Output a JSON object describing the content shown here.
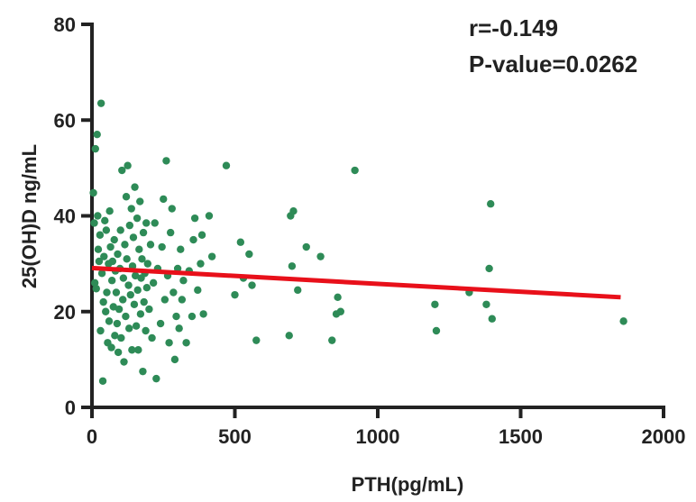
{
  "chart_data": {
    "type": "scatter",
    "title": "",
    "xlabel": "PTH(pg/mL)",
    "ylabel": "25(OH)D ng/mL",
    "xlim": [
      0,
      2000
    ],
    "ylim": [
      0,
      80
    ],
    "xticks": [
      0,
      500,
      1000,
      1500,
      2000
    ],
    "yticks": [
      0,
      20,
      40,
      60,
      80
    ],
    "grid": false,
    "annotations": [
      "r=-0.149",
      "P-value=0.0262"
    ],
    "colors": {
      "points": "#2e8b57",
      "regression": "#e8101a",
      "axis": "#222222"
    },
    "regression_line": {
      "x": [
        0,
        1850
      ],
      "y": [
        29.1,
        23.0
      ]
    },
    "points": [
      [
        5,
        44.8
      ],
      [
        8,
        38.5
      ],
      [
        10,
        26.0
      ],
      [
        12,
        54.0
      ],
      [
        15,
        24.8
      ],
      [
        18,
        57.0
      ],
      [
        20,
        40.0
      ],
      [
        22,
        33.0
      ],
      [
        25,
        30.5
      ],
      [
        28,
        36.0
      ],
      [
        30,
        16.0
      ],
      [
        32,
        63.5
      ],
      [
        35,
        28.0
      ],
      [
        38,
        5.5
      ],
      [
        40,
        22.0
      ],
      [
        42,
        31.5
      ],
      [
        45,
        39.0
      ],
      [
        48,
        20.0
      ],
      [
        50,
        37.0
      ],
      [
        52,
        24.0
      ],
      [
        55,
        13.5
      ],
      [
        58,
        30.0
      ],
      [
        60,
        18.0
      ],
      [
        62,
        41.0
      ],
      [
        65,
        33.5
      ],
      [
        68,
        12.5
      ],
      [
        70,
        26.5
      ],
      [
        72,
        30.5
      ],
      [
        75,
        21.0
      ],
      [
        78,
        35.0
      ],
      [
        80,
        15.0
      ],
      [
        82,
        28.5
      ],
      [
        85,
        24.0
      ],
      [
        88,
        17.5
      ],
      [
        90,
        32.0
      ],
      [
        92,
        11.5
      ],
      [
        95,
        20.5
      ],
      [
        98,
        29.0
      ],
      [
        100,
        37.0
      ],
      [
        102,
        14.5
      ],
      [
        105,
        49.5
      ],
      [
        108,
        22.5
      ],
      [
        110,
        27.0
      ],
      [
        112,
        9.5
      ],
      [
        115,
        34.0
      ],
      [
        118,
        19.0
      ],
      [
        120,
        44.0
      ],
      [
        122,
        31.0
      ],
      [
        125,
        50.5
      ],
      [
        128,
        25.5
      ],
      [
        130,
        16.5
      ],
      [
        132,
        38.0
      ],
      [
        135,
        23.5
      ],
      [
        138,
        41.5
      ],
      [
        140,
        12.0
      ],
      [
        142,
        29.5
      ],
      [
        145,
        35.5
      ],
      [
        148,
        21.5
      ],
      [
        150,
        46.0
      ],
      [
        152,
        27.5
      ],
      [
        155,
        17.0
      ],
      [
        158,
        39.5
      ],
      [
        160,
        24.5
      ],
      [
        162,
        12.0
      ],
      [
        165,
        33.0
      ],
      [
        168,
        43.0
      ],
      [
        170,
        19.5
      ],
      [
        172,
        27.0
      ],
      [
        175,
        31.0
      ],
      [
        178,
        7.5
      ],
      [
        180,
        36.5
      ],
      [
        182,
        22.0
      ],
      [
        185,
        28.0
      ],
      [
        188,
        16.0
      ],
      [
        190,
        38.5
      ],
      [
        192,
        25.0
      ],
      [
        195,
        30.0
      ],
      [
        200,
        20.5
      ],
      [
        205,
        34.0
      ],
      [
        210,
        14.5
      ],
      [
        215,
        26.0
      ],
      [
        220,
        38.5
      ],
      [
        225,
        6.0
      ],
      [
        230,
        29.0
      ],
      [
        240,
        17.5
      ],
      [
        245,
        33.5
      ],
      [
        250,
        43.5
      ],
      [
        255,
        22.5
      ],
      [
        260,
        51.5
      ],
      [
        265,
        27.5
      ],
      [
        270,
        13.5
      ],
      [
        275,
        36.5
      ],
      [
        280,
        41.5
      ],
      [
        285,
        24.0
      ],
      [
        290,
        10.0
      ],
      [
        295,
        19.0
      ],
      [
        300,
        29.0
      ],
      [
        305,
        16.5
      ],
      [
        310,
        33.0
      ],
      [
        315,
        22.5
      ],
      [
        320,
        26.5
      ],
      [
        330,
        13.5
      ],
      [
        340,
        28.5
      ],
      [
        350,
        19.0
      ],
      [
        355,
        35.0
      ],
      [
        360,
        39.5
      ],
      [
        370,
        24.5
      ],
      [
        380,
        30.0
      ],
      [
        385,
        36.0
      ],
      [
        390,
        19.5
      ],
      [
        410,
        40.0
      ],
      [
        420,
        31.5
      ],
      [
        470,
        50.5
      ],
      [
        500,
        23.5
      ],
      [
        520,
        34.5
      ],
      [
        530,
        27.0
      ],
      [
        550,
        32.0
      ],
      [
        560,
        25.5
      ],
      [
        575,
        14.0
      ],
      [
        690,
        15.0
      ],
      [
        695,
        40.0
      ],
      [
        700,
        29.5
      ],
      [
        705,
        41.0
      ],
      [
        720,
        24.5
      ],
      [
        750,
        33.5
      ],
      [
        800,
        31.5
      ],
      [
        840,
        14.0
      ],
      [
        855,
        19.5
      ],
      [
        860,
        23.0
      ],
      [
        870,
        20.0
      ],
      [
        920,
        49.5
      ],
      [
        1200,
        21.5
      ],
      [
        1205,
        16.0
      ],
      [
        1320,
        24.0
      ],
      [
        1380,
        21.5
      ],
      [
        1390,
        29.0
      ],
      [
        1395,
        42.5
      ],
      [
        1400,
        18.5
      ],
      [
        1860,
        18.0
      ]
    ]
  }
}
